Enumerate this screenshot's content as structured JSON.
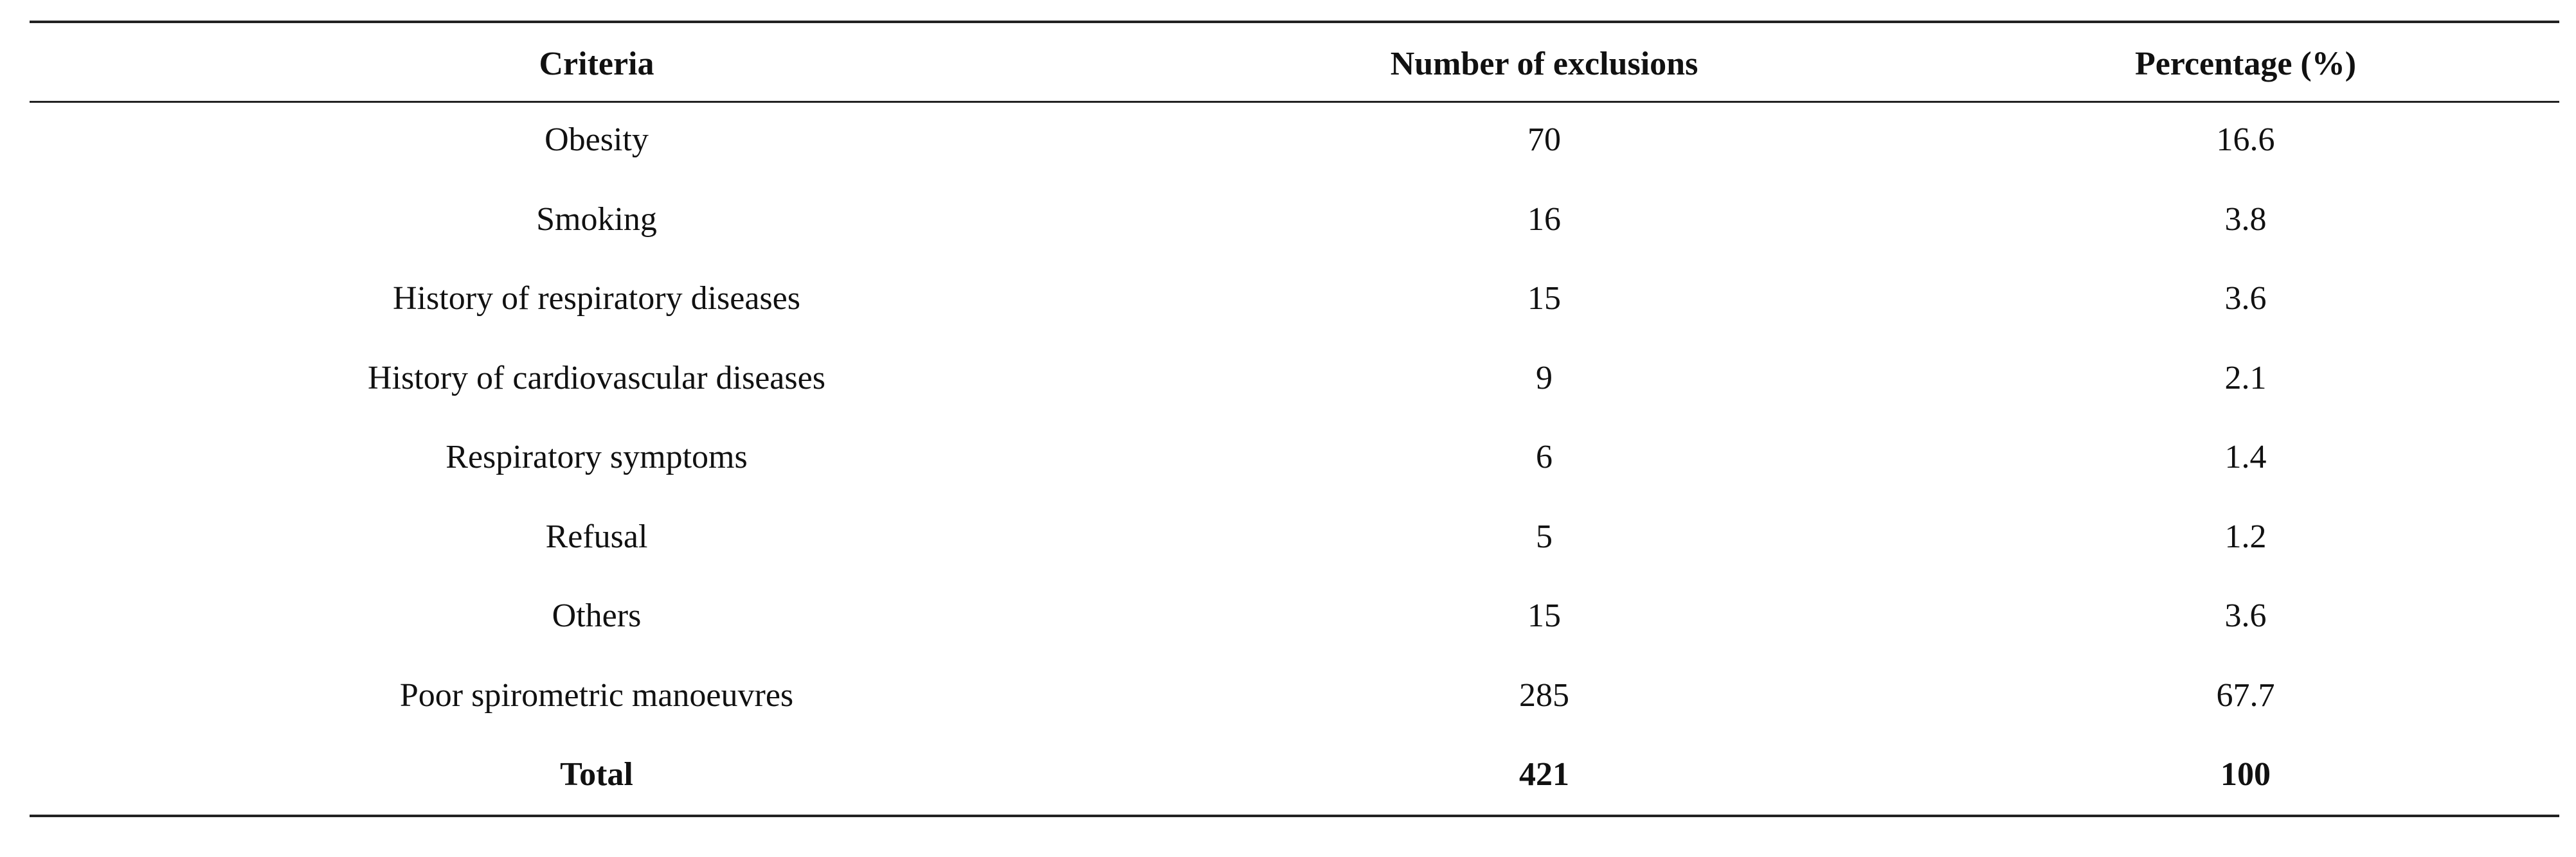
{
  "table": {
    "header": [
      "Criteria",
      "Number of exclusions",
      "Percentage (%)"
    ],
    "rows": [
      [
        "Obesity",
        70,
        16.6
      ],
      [
        "Smoking",
        16,
        3.8
      ],
      [
        "History of respiratory diseases",
        15,
        3.6
      ],
      [
        "History of cardiovascular diseases",
        9,
        2.1
      ],
      [
        "Respiratory symptoms",
        6,
        1.4
      ],
      [
        "Refusal",
        5,
        1.2
      ],
      [
        "Others",
        15,
        3.6
      ],
      [
        "Poor spirometric manoeuvres",
        285,
        67.7
      ]
    ],
    "total": [
      "Total",
      421,
      100
    ]
  }
}
